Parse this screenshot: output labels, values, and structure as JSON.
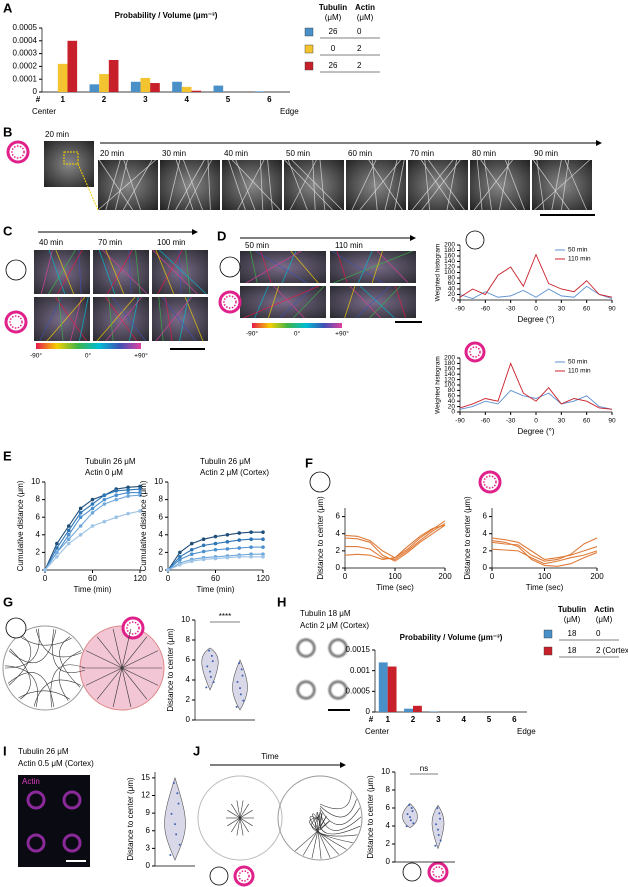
{
  "figure": {
    "panels": [
      "A",
      "B",
      "C",
      "D",
      "E",
      "F",
      "G",
      "H",
      "I",
      "J"
    ],
    "b_overview_time": "20 min",
    "b_times": [
      "20 min",
      "30 min",
      "40 min",
      "50 min",
      "60 min",
      "70 min",
      "80 min",
      "90 min"
    ],
    "c_times": [
      "40 min",
      "70 min",
      "100 min"
    ],
    "d_times": [
      "50 min",
      "110 min"
    ],
    "colorbar": [
      "-90°",
      "0°",
      "+90°"
    ],
    "h_text": [
      "Tubulin 18 μM",
      "Actin 2 μM (Cortex)"
    ],
    "i_text": [
      "Tubulin 26 μM",
      "Actin 0.5 μM (Cortex)"
    ],
    "i_stain": "Actin",
    "j_arrow": "Time"
  },
  "chart_data": [
    {
      "type": "bar",
      "title": "Probability / Volume (μm⁻³)",
      "categories": [
        "1",
        "2",
        "3",
        "4",
        "5",
        "6"
      ],
      "category_axis_label": "#",
      "start_label": "Center",
      "end_label": "Edge",
      "legend_columns": [
        "Tubulin",
        "Actin"
      ],
      "legend_unit": "(μM)",
      "series": [
        {
          "tubulin": "26",
          "actin": "0",
          "color": "#4a90c8",
          "values": [
            0,
            6e-05,
            8e-05,
            8e-05,
            5e-05,
            5e-06
          ]
        },
        {
          "tubulin": "0",
          "actin": "2",
          "color": "#f4c430",
          "values": [
            0.00022,
            0.00014,
            0.00011,
            4e-05,
            0,
            0
          ]
        },
        {
          "tubulin": "26",
          "actin": "2",
          "color": "#c8202a",
          "values": [
            0.0004,
            0.00025,
            7e-05,
            1e-05,
            0,
            0
          ]
        }
      ],
      "ylim": [
        0,
        0.0005
      ],
      "yticks": [
        0,
        0.0001,
        0.0002,
        0.0003,
        0.0004,
        0.0005
      ]
    },
    {
      "type": "line",
      "xlabel": "Degree (°)",
      "ylabel": "Weighted histogram",
      "x": [
        -90,
        -75,
        -60,
        -45,
        -30,
        -15,
        0,
        15,
        30,
        45,
        60,
        75,
        90
      ],
      "series": [
        {
          "name": "50 min",
          "color": "#5b8fd0",
          "values": [
            20,
            5,
            30,
            10,
            15,
            35,
            10,
            40,
            15,
            10,
            50,
            20,
            5
          ]
        },
        {
          "name": "110 min",
          "color": "#c8202a",
          "values": [
            10,
            40,
            20,
            90,
            120,
            50,
            165,
            60,
            40,
            30,
            70,
            20,
            10
          ]
        }
      ],
      "xlim": [
        -90,
        90
      ],
      "xticks": [
        -90,
        -60,
        -30,
        0,
        30,
        60,
        90
      ],
      "ylim": [
        0,
        200
      ],
      "yticks": [
        0,
        20,
        40,
        60,
        80,
        100,
        120,
        140,
        160,
        180,
        200
      ]
    },
    {
      "type": "line",
      "xlabel": "Degree (°)",
      "ylabel": "Weighted histogram",
      "x": [
        -90,
        -75,
        -60,
        -45,
        -30,
        -15,
        0,
        15,
        30,
        45,
        60,
        75,
        90
      ],
      "series": [
        {
          "name": "50 min",
          "color": "#5b8fd0",
          "values": [
            10,
            20,
            40,
            30,
            80,
            60,
            50,
            70,
            30,
            40,
            60,
            20,
            10
          ]
        },
        {
          "name": "110 min",
          "color": "#c8202a",
          "values": [
            15,
            30,
            50,
            40,
            180,
            70,
            40,
            90,
            30,
            50,
            40,
            15,
            10
          ]
        }
      ],
      "xlim": [
        -90,
        90
      ],
      "xticks": [
        -90,
        -60,
        -30,
        0,
        30,
        60,
        90
      ],
      "ylim": [
        0,
        200
      ],
      "yticks": [
        0,
        20,
        40,
        60,
        80,
        100,
        120,
        140,
        160,
        180,
        200
      ]
    },
    {
      "type": "line",
      "markers": true,
      "title_lines": [
        "Tubulin 26 μM",
        "Actin 0 μM"
      ],
      "xlabel": "Time (min)",
      "ylabel": "Cumulative distance (μm)",
      "x": [
        0,
        15,
        30,
        45,
        60,
        75,
        90,
        105,
        120
      ],
      "series": [
        {
          "color": "#1f4e79",
          "values": [
            0,
            3,
            5,
            7,
            8,
            8.5,
            9.2,
            9.4,
            9.5
          ]
        },
        {
          "color": "#2e75b6",
          "values": [
            0,
            2.5,
            4.5,
            6.5,
            7.5,
            8.5,
            9,
            9.1,
            9.2
          ]
        },
        {
          "color": "#4a8fcf",
          "values": [
            0,
            2,
            4,
            6,
            7,
            8,
            8.5,
            8.8,
            8.8
          ]
        },
        {
          "color": "#6fa8dc",
          "values": [
            0,
            2,
            3.5,
            5,
            6.5,
            7.5,
            8,
            8.4,
            8.5
          ]
        },
        {
          "color": "#9dc3e6",
          "values": [
            0,
            1.5,
            3,
            4,
            5,
            5.5,
            6,
            6.4,
            6.7
          ]
        }
      ],
      "xlim": [
        0,
        120
      ],
      "xticks": [
        0,
        60,
        120
      ],
      "ylim": [
        0,
        10
      ],
      "yticks": [
        0,
        2,
        4,
        6,
        8,
        10
      ]
    },
    {
      "type": "line",
      "markers": true,
      "title_lines": [
        "Tubulin 26 μM",
        "Actin 2 μM (Cortex)"
      ],
      "xlabel": "Time (min)",
      "ylabel": "Cumulative distance (μm)",
      "x": [
        0,
        15,
        30,
        45,
        60,
        75,
        90,
        105,
        120
      ],
      "series": [
        {
          "color": "#1f4e79",
          "values": [
            0,
            2,
            3,
            3.5,
            3.8,
            4,
            4.2,
            4.3,
            4.3
          ]
        },
        {
          "color": "#2e75b6",
          "values": [
            0,
            1.5,
            2.3,
            2.8,
            3,
            3.2,
            3.4,
            3.5,
            3.5
          ]
        },
        {
          "color": "#4a8fcf",
          "values": [
            0,
            1.2,
            1.8,
            2.1,
            2.3,
            2.4,
            2.5,
            2.6,
            2.6
          ]
        },
        {
          "color": "#6fa8dc",
          "values": [
            0,
            0.8,
            1.2,
            1.4,
            1.5,
            1.6,
            1.7,
            1.8,
            1.8
          ]
        },
        {
          "color": "#9dc3e6",
          "values": [
            0,
            0.6,
            1,
            1.2,
            1.3,
            1.4,
            1.5,
            1.5,
            1.5
          ]
        }
      ],
      "xlim": [
        0,
        120
      ],
      "xticks": [
        0,
        60,
        120
      ],
      "ylim": [
        0,
        10
      ],
      "yticks": [
        0,
        2,
        4,
        6,
        8,
        10
      ]
    },
    {
      "type": "line",
      "xlabel": "Time (sec)",
      "ylabel": "Distance to center (μm)",
      "x": [
        0,
        25,
        50,
        75,
        100,
        125,
        150,
        175,
        200
      ],
      "series": [
        {
          "color": "#e07b39",
          "values": [
            3.5,
            3.4,
            3,
            1.5,
            0.8,
            1.8,
            3,
            4,
            5
          ]
        },
        {
          "color": "#e07b39",
          "values": [
            2.5,
            2.5,
            2.2,
            1.2,
            1,
            2,
            3.2,
            4.3,
            5.2
          ]
        },
        {
          "color": "#e07b39",
          "values": [
            1.5,
            1.6,
            1.5,
            1,
            1.2,
            2.2,
            3.5,
            4.5,
            5.5
          ]
        },
        {
          "color": "#e07b39",
          "values": [
            3.8,
            3.7,
            3.2,
            2,
            1.2,
            2.5,
            3.7,
            4.6,
            5
          ]
        }
      ],
      "xlim": [
        0,
        200
      ],
      "xticks": [
        0,
        100,
        200
      ],
      "ylim": [
        0,
        7
      ],
      "yticks": [
        0,
        2,
        4,
        6
      ]
    },
    {
      "type": "line",
      "xlabel": "Time (sec)",
      "ylabel": "Distance to center (μm)",
      "x": [
        0,
        25,
        50,
        75,
        100,
        125,
        150,
        175,
        200
      ],
      "series": [
        {
          "color": "#e07b39",
          "values": [
            3.5,
            3.3,
            3,
            2,
            1,
            1.2,
            1.5,
            2,
            2.5
          ]
        },
        {
          "color": "#e07b39",
          "values": [
            3,
            2.8,
            2.7,
            1.5,
            0.8,
            1,
            1.6,
            2.8,
            3.5
          ]
        },
        {
          "color": "#e07b39",
          "values": [
            2.2,
            2.1,
            2,
            1.2,
            0.5,
            0.8,
            1.2,
            1.5,
            2
          ]
        },
        {
          "color": "#e07b39",
          "values": [
            3.2,
            3,
            2.5,
            1,
            0.3,
            0.2,
            0.5,
            1.2,
            1.8
          ]
        }
      ],
      "xlim": [
        0,
        200
      ],
      "xticks": [
        0,
        100,
        200
      ],
      "ylim": [
        0,
        7
      ],
      "yticks": [
        0,
        2,
        4,
        6
      ]
    },
    {
      "type": "violin",
      "ylabel": "Distance to center (μm)",
      "annotation": "****",
      "ylim": [
        0,
        10
      ],
      "yticks": [
        0,
        2,
        4,
        6,
        8,
        10
      ]
    },
    {
      "type": "bar",
      "title": "Probability / Volume (μm⁻³)",
      "categories": [
        "1",
        "2",
        "3",
        "4",
        "5",
        "6"
      ],
      "category_axis_label": "#",
      "start_label": "Center",
      "end_label": "Edge",
      "legend_columns": [
        "Tubulin",
        "Actin"
      ],
      "legend_unit": "(μM)",
      "series": [
        {
          "tubulin": "18",
          "actin": "0",
          "color": "#4a90c8",
          "values": [
            0.0012,
            8e-05,
            1e-05,
            0,
            0,
            0
          ]
        },
        {
          "tubulin": "18",
          "actin": "2 (Cortex)",
          "color": "#c8202a",
          "values": [
            0.0011,
            0.00015,
            0,
            0,
            0,
            0
          ]
        }
      ],
      "ylim": [
        0,
        0.0015
      ],
      "yticks": [
        0,
        0.0005,
        0.001,
        0.0015
      ]
    },
    {
      "type": "violin",
      "ylabel": "Distance to center (μm)",
      "ylim": [
        0,
        16
      ],
      "yticks": [
        0,
        3,
        6,
        9,
        12,
        15
      ]
    },
    {
      "type": "violin",
      "ylabel": "Distance to center (μm)",
      "annotation": "ns",
      "ylim": [
        0,
        10
      ],
      "yticks": [
        0,
        2,
        4,
        6,
        8,
        10
      ]
    }
  ]
}
